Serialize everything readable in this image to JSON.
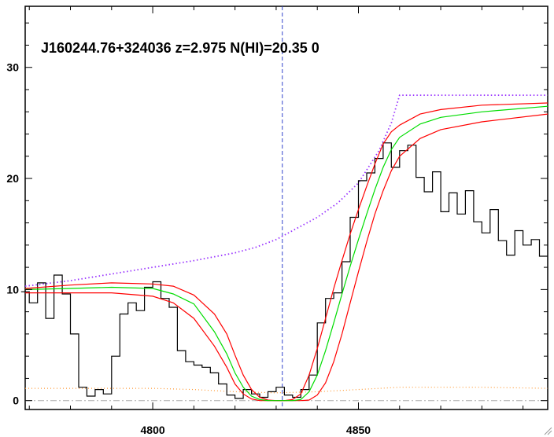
{
  "chart_data": {
    "type": "line",
    "title": "J160244.76+324036 z=2.975 N(HI)=20.35 0",
    "xlabel": "",
    "ylabel": "",
    "xlim": [
      4769,
      4896
    ],
    "ylim": [
      -0.8,
      35.5
    ],
    "x_ticks": [
      4800,
      4850
    ],
    "y_ticks": [
      0,
      10,
      20,
      30
    ],
    "grid": false,
    "marker_x": 4831.5,
    "zero_level": 0,
    "colors": {
      "spectrum": "#000000",
      "continuum": "#9933ff",
      "error": "#ff9933",
      "fit": "#00dd00",
      "fit_bounds": "#ff0000",
      "marker": "#3344cc",
      "zero": "#aaaaaa"
    },
    "series": [
      {
        "role": "spectrum",
        "style": "step",
        "x": [
          4769,
          4771,
          4773,
          4775,
          4777,
          4779,
          4781,
          4783,
          4785,
          4787,
          4789,
          4791,
          4793,
          4795,
          4797,
          4799,
          4801,
          4803,
          4805,
          4807,
          4809,
          4811,
          4813,
          4815,
          4817,
          4819,
          4821,
          4823,
          4825,
          4827,
          4829,
          4831,
          4833,
          4835,
          4837,
          4839,
          4841,
          4843,
          4845,
          4847,
          4849,
          4851,
          4853,
          4855,
          4857,
          4859,
          4861,
          4863,
          4865,
          4867,
          4869,
          4871,
          4873,
          4875,
          4877,
          4879,
          4881,
          4883,
          4885,
          4887,
          4889,
          4891,
          4893,
          4895
        ],
        "y": [
          9.8,
          8.8,
          10.6,
          7.4,
          11.3,
          9.6,
          6.0,
          1.2,
          0.4,
          1.0,
          0.6,
          4.0,
          7.8,
          8.8,
          8.1,
          10.2,
          10.7,
          9.2,
          8.4,
          4.5,
          3.5,
          3.2,
          3.0,
          2.5,
          1.5,
          0.5,
          0.2,
          1.0,
          0.6,
          0.3,
          0.8,
          1.2,
          0.5,
          0.3,
          1.0,
          2.3,
          7.0,
          9.2,
          9.7,
          12.5,
          16.5,
          19.8,
          20.5,
          21.8,
          23.2,
          21.0,
          22.5,
          23.0,
          20.1,
          18.8,
          20.6,
          17.0,
          18.7,
          16.8,
          18.9,
          16.1,
          15.1,
          17.2,
          14.4,
          13.1,
          15.3,
          14.0,
          14.5,
          13.0
        ]
      },
      {
        "role": "continuum",
        "style": "dotted",
        "x": [
          4769,
          4780,
          4790,
          4800,
          4810,
          4820,
          4825,
          4830,
          4835,
          4840,
          4845,
          4850,
          4855,
          4858,
          4860,
          4870,
          4880,
          4896
        ],
        "y": [
          10.3,
          10.8,
          11.4,
          12.0,
          12.6,
          13.3,
          13.8,
          14.5,
          15.5,
          16.5,
          17.8,
          19.6,
          22.5,
          25.0,
          27.5,
          27.5,
          27.5,
          27.5
        ]
      },
      {
        "role": "error",
        "style": "dotted",
        "x": [
          4769,
          4780,
          4790,
          4800,
          4810,
          4820,
          4830,
          4840,
          4850,
          4860,
          4870,
          4880,
          4896
        ],
        "y": [
          1.1,
          1.1,
          1.1,
          1.1,
          1.0,
          0.8,
          0.7,
          0.8,
          1.0,
          1.2,
          1.2,
          1.2,
          1.1
        ]
      },
      {
        "role": "fit",
        "style": "solid",
        "x": [
          4769,
          4780,
          4790,
          4800,
          4805,
          4810,
          4815,
          4818,
          4820,
          4822,
          4824,
          4826,
          4828,
          4830,
          4832,
          4834,
          4836,
          4838,
          4840,
          4842,
          4844,
          4846,
          4848,
          4850,
          4852,
          4854,
          4856,
          4858,
          4860,
          4865,
          4870,
          4880,
          4896
        ],
        "y": [
          10.0,
          10.1,
          10.2,
          10.1,
          9.6,
          8.7,
          6.2,
          4.2,
          2.5,
          1.2,
          0.4,
          0.1,
          0.0,
          0.0,
          0.0,
          0.0,
          0.1,
          0.8,
          2.3,
          4.5,
          7.0,
          9.6,
          12.1,
          14.5,
          16.8,
          19.0,
          21.0,
          22.6,
          23.7,
          24.9,
          25.5,
          26.0,
          26.5
        ]
      },
      {
        "role": "fit-upper",
        "style": "solid",
        "x": [
          4769,
          4780,
          4790,
          4800,
          4805,
          4810,
          4815,
          4818,
          4820,
          4822,
          4824,
          4826,
          4828,
          4830,
          4832,
          4834,
          4836,
          4838,
          4840,
          4842,
          4844,
          4846,
          4848,
          4850,
          4852,
          4854,
          4856,
          4858,
          4860,
          4865,
          4870,
          4880,
          4896
        ],
        "y": [
          10.1,
          10.4,
          10.6,
          10.5,
          10.3,
          9.5,
          7.8,
          6.0,
          4.1,
          2.3,
          1.0,
          0.3,
          0.05,
          0.0,
          0.0,
          0.1,
          0.6,
          2.3,
          4.7,
          7.4,
          10.1,
          12.6,
          15.0,
          17.2,
          19.3,
          21.3,
          23.1,
          24.2,
          24.8,
          25.8,
          26.2,
          26.6,
          26.8
        ]
      },
      {
        "role": "fit-lower",
        "style": "solid",
        "x": [
          4769,
          4780,
          4790,
          4800,
          4805,
          4810,
          4815,
          4818,
          4820,
          4822,
          4824,
          4826,
          4828,
          4830,
          4832,
          4834,
          4836,
          4838,
          4840,
          4842,
          4844,
          4846,
          4848,
          4850,
          4852,
          4854,
          4856,
          4858,
          4860,
          4865,
          4870,
          4880,
          4896
        ],
        "y": [
          9.7,
          9.7,
          9.7,
          9.4,
          8.8,
          7.4,
          4.9,
          3.0,
          1.5,
          0.6,
          0.15,
          0.0,
          0.0,
          0.0,
          0.0,
          0.0,
          0.0,
          0.05,
          0.5,
          1.6,
          3.5,
          6.0,
          8.8,
          11.6,
          14.3,
          16.8,
          18.9,
          20.7,
          22.0,
          23.6,
          24.4,
          25.1,
          25.8
        ]
      }
    ]
  }
}
